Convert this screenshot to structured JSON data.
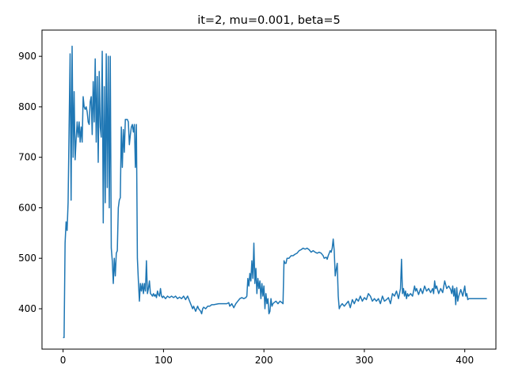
{
  "chart_data": {
    "type": "line",
    "title": "it=2, mu=0.001, beta=5",
    "xlabel": "",
    "ylabel": "",
    "xlim": [
      -21,
      431
    ],
    "ylim": [
      320,
      952
    ],
    "x_ticks": [
      0,
      100,
      200,
      300,
      400
    ],
    "y_ticks": [
      400,
      500,
      600,
      700,
      800,
      900
    ],
    "grid": false,
    "series": [
      {
        "color": "#1f77b4",
        "points": [
          [
            0,
            343
          ],
          [
            1,
            343
          ],
          [
            2,
            530
          ],
          [
            3,
            572
          ],
          [
            4,
            555
          ],
          [
            5,
            610
          ],
          [
            6,
            760
          ],
          [
            7,
            905
          ],
          [
            8,
            615
          ],
          [
            9,
            920
          ],
          [
            10,
            700
          ],
          [
            11,
            830
          ],
          [
            12,
            695
          ],
          [
            13,
            735
          ],
          [
            14,
            770
          ],
          [
            15,
            740
          ],
          [
            16,
            770
          ],
          [
            17,
            730
          ],
          [
            18,
            760
          ],
          [
            19,
            730
          ],
          [
            20,
            820
          ],
          [
            21,
            800
          ],
          [
            22,
            795
          ],
          [
            23,
            800
          ],
          [
            24,
            790
          ],
          [
            25,
            770
          ],
          [
            26,
            765
          ],
          [
            27,
            810
          ],
          [
            28,
            820
          ],
          [
            29,
            745
          ],
          [
            30,
            850
          ],
          [
            31,
            770
          ],
          [
            32,
            895
          ],
          [
            33,
            730
          ],
          [
            34,
            860
          ],
          [
            35,
            690
          ],
          [
            36,
            870
          ],
          [
            37,
            760
          ],
          [
            38,
            740
          ],
          [
            39,
            910
          ],
          [
            40,
            570
          ],
          [
            41,
            840
          ],
          [
            42,
            610
          ],
          [
            43,
            905
          ],
          [
            44,
            640
          ],
          [
            45,
            900
          ],
          [
            46,
            600
          ],
          [
            47,
            900
          ],
          [
            48,
            520
          ],
          [
            49,
            495
          ],
          [
            50,
            450
          ],
          [
            51,
            500
          ],
          [
            52,
            465
          ],
          [
            53,
            510
          ],
          [
            54,
            515
          ],
          [
            55,
            600
          ],
          [
            56,
            615
          ],
          [
            57,
            620
          ],
          [
            58,
            760
          ],
          [
            59,
            680
          ],
          [
            60,
            755
          ],
          [
            61,
            710
          ],
          [
            62,
            775
          ],
          [
            63,
            775
          ],
          [
            64,
            775
          ],
          [
            65,
            770
          ],
          [
            66,
            725
          ],
          [
            67,
            745
          ],
          [
            68,
            760
          ],
          [
            69,
            765
          ],
          [
            70,
            750
          ],
          [
            71,
            765
          ],
          [
            72,
            680
          ],
          [
            73,
            765
          ],
          [
            74,
            500
          ],
          [
            75,
            455
          ],
          [
            76,
            415
          ],
          [
            77,
            450
          ],
          [
            78,
            435
          ],
          [
            79,
            450
          ],
          [
            80,
            430
          ],
          [
            81,
            450
          ],
          [
            82,
            435
          ],
          [
            83,
            495
          ],
          [
            84,
            430
          ],
          [
            85,
            440
          ],
          [
            86,
            455
          ],
          [
            87,
            430
          ],
          [
            88,
            428
          ],
          [
            89,
            425
          ],
          [
            90,
            430
          ],
          [
            91,
            425
          ],
          [
            92,
            428
          ],
          [
            93,
            422
          ],
          [
            94,
            435
          ],
          [
            95,
            428
          ],
          [
            96,
            425
          ],
          [
            97,
            440
          ],
          [
            98,
            425
          ],
          [
            99,
            422
          ],
          [
            100,
            425
          ],
          [
            102,
            420
          ],
          [
            104,
            425
          ],
          [
            106,
            422
          ],
          [
            108,
            425
          ],
          [
            110,
            422
          ],
          [
            112,
            425
          ],
          [
            114,
            420
          ],
          [
            116,
            423
          ],
          [
            118,
            420
          ],
          [
            120,
            425
          ],
          [
            122,
            418
          ],
          [
            124,
            425
          ],
          [
            125,
            420
          ],
          [
            127,
            410
          ],
          [
            129,
            400
          ],
          [
            130,
            405
          ],
          [
            132,
            395
          ],
          [
            134,
            405
          ],
          [
            135,
            400
          ],
          [
            137,
            395
          ],
          [
            138,
            390
          ],
          [
            139,
            400
          ],
          [
            140,
            403
          ],
          [
            142,
            400
          ],
          [
            144,
            405
          ],
          [
            146,
            405
          ],
          [
            148,
            408
          ],
          [
            150,
            408
          ],
          [
            155,
            410
          ],
          [
            160,
            410
          ],
          [
            163,
            410
          ],
          [
            165,
            412
          ],
          [
            166,
            405
          ],
          [
            168,
            410
          ],
          [
            170,
            402
          ],
          [
            172,
            410
          ],
          [
            174,
            415
          ],
          [
            176,
            420
          ],
          [
            178,
            422
          ],
          [
            180,
            420
          ],
          [
            182,
            422
          ],
          [
            183,
            425
          ],
          [
            184,
            460
          ],
          [
            185,
            445
          ],
          [
            186,
            470
          ],
          [
            187,
            455
          ],
          [
            188,
            495
          ],
          [
            189,
            460
          ],
          [
            190,
            530
          ],
          [
            191,
            450
          ],
          [
            192,
            480
          ],
          [
            193,
            430
          ],
          [
            194,
            460
          ],
          [
            195,
            440
          ],
          [
            196,
            455
          ],
          [
            197,
            420
          ],
          [
            198,
            450
          ],
          [
            199,
            425
          ],
          [
            200,
            445
          ],
          [
            201,
            400
          ],
          [
            202,
            430
          ],
          [
            203,
            410
          ],
          [
            204,
            420
          ],
          [
            205,
            390
          ],
          [
            206,
            395
          ],
          [
            207,
            420
          ],
          [
            208,
            405
          ],
          [
            209,
            410
          ],
          [
            210,
            412
          ],
          [
            212,
            415
          ],
          [
            214,
            410
          ],
          [
            216,
            415
          ],
          [
            218,
            412
          ],
          [
            219,
            410
          ],
          [
            220,
            495
          ],
          [
            221,
            490
          ],
          [
            222,
            490
          ],
          [
            223,
            500
          ],
          [
            225,
            500
          ],
          [
            227,
            505
          ],
          [
            229,
            505
          ],
          [
            231,
            508
          ],
          [
            233,
            510
          ],
          [
            235,
            515
          ],
          [
            237,
            517
          ],
          [
            239,
            520
          ],
          [
            241,
            518
          ],
          [
            243,
            520
          ],
          [
            245,
            517
          ],
          [
            247,
            512
          ],
          [
            249,
            515
          ],
          [
            251,
            512
          ],
          [
            253,
            510
          ],
          [
            255,
            512
          ],
          [
            257,
            510
          ],
          [
            259,
            505
          ],
          [
            260,
            500
          ],
          [
            262,
            502
          ],
          [
            263,
            498
          ],
          [
            264,
            505
          ],
          [
            265,
            510
          ],
          [
            266,
            515
          ],
          [
            267,
            512
          ],
          [
            268,
            520
          ],
          [
            269,
            538
          ],
          [
            270,
            515
          ],
          [
            271,
            465
          ],
          [
            272,
            478
          ],
          [
            273,
            490
          ],
          [
            274,
            425
          ],
          [
            275,
            400
          ],
          [
            276,
            405
          ],
          [
            278,
            410
          ],
          [
            280,
            405
          ],
          [
            282,
            410
          ],
          [
            284,
            415
          ],
          [
            286,
            402
          ],
          [
            288,
            418
          ],
          [
            290,
            410
          ],
          [
            292,
            420
          ],
          [
            294,
            415
          ],
          [
            296,
            425
          ],
          [
            298,
            415
          ],
          [
            300,
            422
          ],
          [
            302,
            418
          ],
          [
            304,
            430
          ],
          [
            306,
            425
          ],
          [
            308,
            415
          ],
          [
            310,
            420
          ],
          [
            312,
            415
          ],
          [
            314,
            420
          ],
          [
            316,
            410
          ],
          [
            318,
            425
          ],
          [
            320,
            415
          ],
          [
            322,
            418
          ],
          [
            324,
            422
          ],
          [
            326,
            410
          ],
          [
            328,
            430
          ],
          [
            330,
            425
          ],
          [
            332,
            435
          ],
          [
            334,
            420
          ],
          [
            336,
            440
          ],
          [
            337,
            498
          ],
          [
            338,
            430
          ],
          [
            339,
            440
          ],
          [
            340,
            425
          ],
          [
            341,
            435
          ],
          [
            342,
            420
          ],
          [
            343,
            430
          ],
          [
            344,
            425
          ],
          [
            346,
            430
          ],
          [
            348,
            425
          ],
          [
            350,
            445
          ],
          [
            351,
            435
          ],
          [
            352,
            440
          ],
          [
            354,
            428
          ],
          [
            356,
            440
          ],
          [
            358,
            430
          ],
          [
            360,
            445
          ],
          [
            362,
            435
          ],
          [
            364,
            440
          ],
          [
            366,
            432
          ],
          [
            368,
            440
          ],
          [
            369,
            430
          ],
          [
            370,
            455
          ],
          [
            371,
            440
          ],
          [
            372,
            445
          ],
          [
            374,
            430
          ],
          [
            376,
            440
          ],
          [
            378,
            432
          ],
          [
            380,
            455
          ],
          [
            382,
            440
          ],
          [
            384,
            445
          ],
          [
            386,
            438
          ],
          [
            387,
            430
          ],
          [
            388,
            445
          ],
          [
            389,
            425
          ],
          [
            390,
            440
          ],
          [
            391,
            408
          ],
          [
            392,
            442
          ],
          [
            393,
            415
          ],
          [
            394,
            425
          ],
          [
            396,
            438
          ],
          [
            398,
            425
          ],
          [
            400,
            445
          ],
          [
            401,
            425
          ],
          [
            402,
            430
          ],
          [
            403,
            418
          ],
          [
            404,
            420
          ],
          [
            406,
            420
          ],
          [
            410,
            420
          ],
          [
            415,
            420
          ],
          [
            420,
            420
          ],
          [
            422,
            420
          ]
        ]
      }
    ]
  }
}
